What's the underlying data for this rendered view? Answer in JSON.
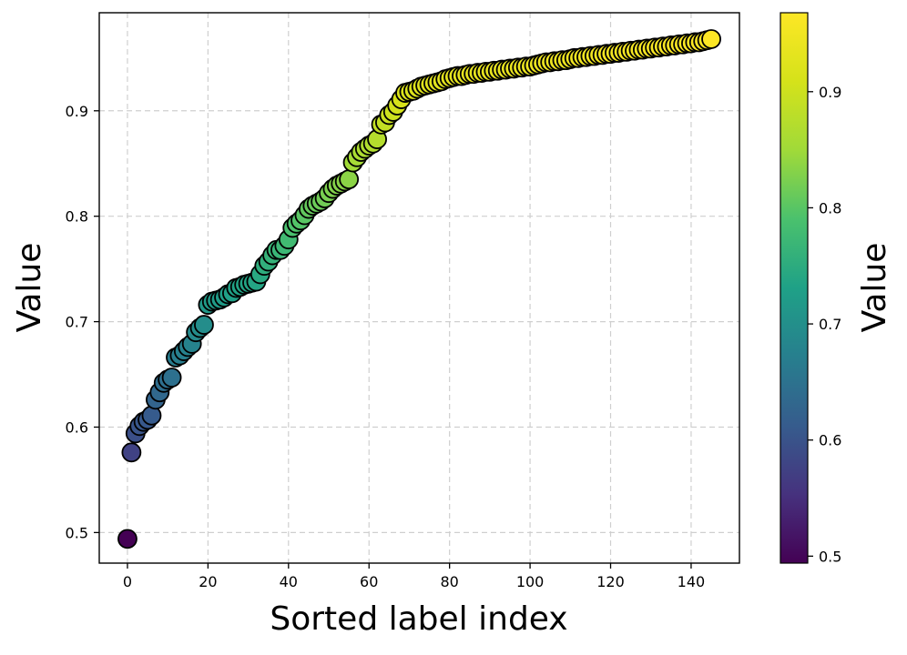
{
  "chart_data": {
    "type": "scatter",
    "xlabel": "Sorted label index",
    "ylabel": "Value",
    "colorbar_label": "Value",
    "colormap": "viridis",
    "grid": true,
    "xlim": [
      -7,
      152
    ],
    "ylim": [
      0.471,
      0.993
    ],
    "xticks": [
      0,
      20,
      40,
      60,
      80,
      100,
      120,
      140
    ],
    "xtick_labels": [
      "0",
      "20",
      "40",
      "60",
      "80",
      "100",
      "120",
      "140"
    ],
    "yticks": [
      0.5,
      0.6,
      0.7,
      0.8,
      0.9
    ],
    "ytick_labels": [
      "0.5",
      "0.6",
      "0.7",
      "0.8",
      "0.9"
    ],
    "colorbar_range": [
      0.494,
      0.968
    ],
    "colorbar_ticks": [
      0.5,
      0.6,
      0.7,
      0.8,
      0.9
    ],
    "colorbar_tick_labels": [
      "0.5",
      "0.6",
      "0.7",
      "0.8",
      "0.9"
    ],
    "points": {
      "x": [
        0,
        1,
        2,
        3,
        4,
        5,
        6,
        7,
        8,
        9,
        10,
        11,
        12,
        13,
        14,
        15,
        16,
        17,
        18,
        19,
        20,
        21,
        22,
        23,
        24,
        25,
        26,
        27,
        28,
        29,
        30,
        31,
        32,
        33,
        34,
        35,
        36,
        37,
        38,
        39,
        40,
        41,
        42,
        43,
        44,
        45,
        46,
        47,
        48,
        49,
        50,
        51,
        52,
        53,
        54,
        55,
        56,
        57,
        58,
        59,
        60,
        61,
        62,
        63,
        64,
        65,
        66,
        67,
        68,
        69,
        70,
        71,
        72,
        73,
        74,
        75,
        76,
        77,
        78,
        79,
        80,
        81,
        82,
        83,
        84,
        85,
        86,
        87,
        88,
        89,
        90,
        91,
        92,
        93,
        94,
        95,
        96,
        97,
        98,
        99,
        100,
        101,
        102,
        103,
        104,
        105,
        106,
        107,
        108,
        109,
        110,
        111,
        112,
        113,
        114,
        115,
        116,
        117,
        118,
        119,
        120,
        121,
        122,
        123,
        124,
        125,
        126,
        127,
        128,
        129,
        130,
        131,
        132,
        133,
        134,
        135,
        136,
        137,
        138,
        139,
        140,
        141,
        142,
        143,
        144,
        145
      ],
      "y": [
        0.494,
        0.576,
        0.594,
        0.601,
        0.605,
        0.607,
        0.611,
        0.626,
        0.633,
        0.642,
        0.645,
        0.647,
        0.666,
        0.668,
        0.672,
        0.676,
        0.679,
        0.69,
        0.694,
        0.697,
        0.716,
        0.719,
        0.72,
        0.721,
        0.723,
        0.726,
        0.727,
        0.732,
        0.733,
        0.735,
        0.736,
        0.737,
        0.738,
        0.745,
        0.753,
        0.757,
        0.763,
        0.768,
        0.768,
        0.772,
        0.778,
        0.789,
        0.793,
        0.796,
        0.801,
        0.807,
        0.81,
        0.812,
        0.814,
        0.817,
        0.822,
        0.826,
        0.829,
        0.831,
        0.833,
        0.835,
        0.851,
        0.856,
        0.861,
        0.864,
        0.867,
        0.869,
        0.873,
        0.887,
        0.889,
        0.896,
        0.899,
        0.905,
        0.911,
        0.917,
        0.918,
        0.919,
        0.921,
        0.923,
        0.924,
        0.925,
        0.926,
        0.927,
        0.928,
        0.93,
        0.931,
        0.932,
        0.933,
        0.933,
        0.934,
        0.935,
        0.935,
        0.936,
        0.936,
        0.937,
        0.937,
        0.938,
        0.938,
        0.939,
        0.939,
        0.94,
        0.94,
        0.941,
        0.941,
        0.942,
        0.942,
        0.943,
        0.944,
        0.945,
        0.946,
        0.946,
        0.947,
        0.947,
        0.948,
        0.948,
        0.949,
        0.95,
        0.95,
        0.951,
        0.951,
        0.952,
        0.952,
        0.953,
        0.953,
        0.954,
        0.954,
        0.955,
        0.955,
        0.956,
        0.956,
        0.957,
        0.957,
        0.958,
        0.958,
        0.959,
        0.959,
        0.96,
        0.96,
        0.961,
        0.961,
        0.962,
        0.962,
        0.963,
        0.963,
        0.964,
        0.964,
        0.965,
        0.965,
        0.966,
        0.967,
        0.968
      ]
    }
  }
}
